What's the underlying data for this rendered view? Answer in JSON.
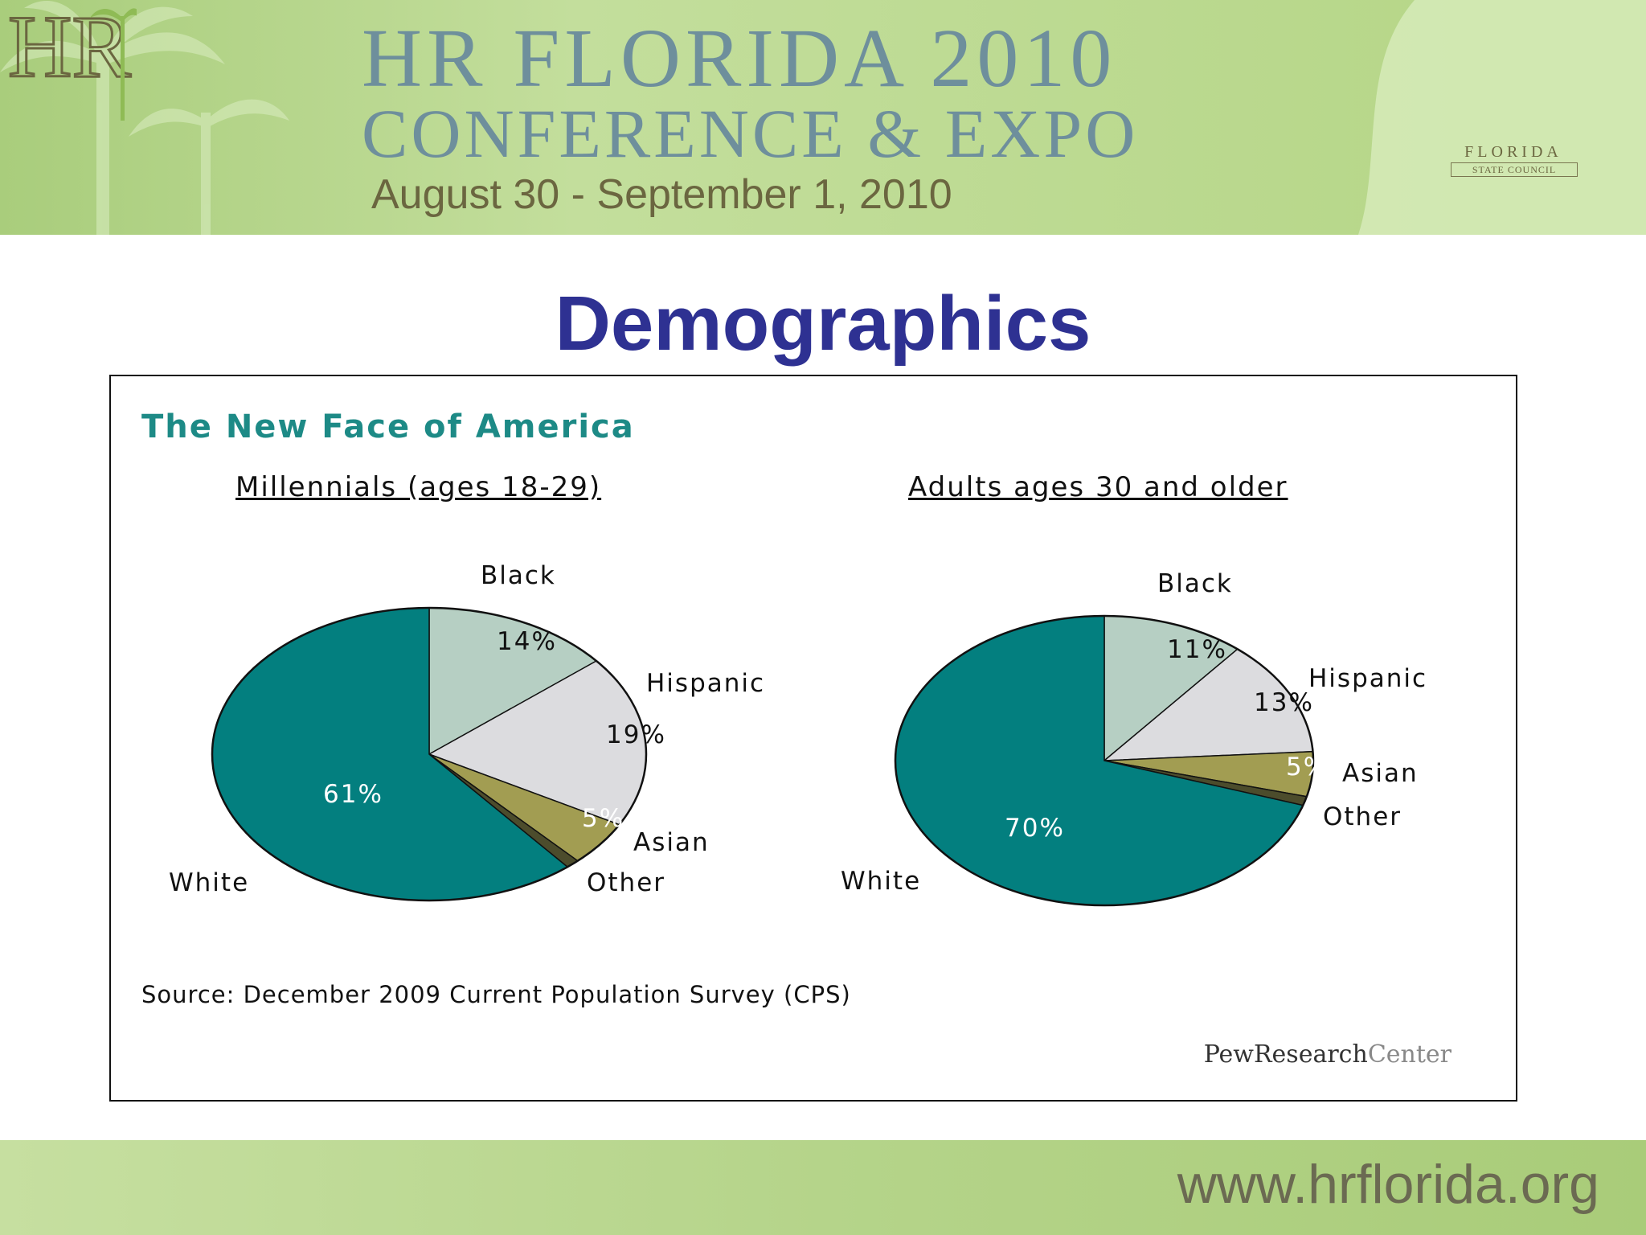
{
  "header": {
    "line1": "HR FLORIDA 2010",
    "line2": "CONFERENCE & EXPO",
    "dates": "August 30 - September 1, 2010",
    "logo": {
      "mark": "HR",
      "florida": "FLORIDA",
      "council": "STATE COUNCIL"
    }
  },
  "slide": {
    "title": "Demographics"
  },
  "figure": {
    "heading": "The New Face of America",
    "source": "Source: December 2009 Current Population Survey (CPS)",
    "publisher_bold": "PewResearch",
    "publisher_light": "Center"
  },
  "colors": {
    "white": "#037f7f",
    "black": "#b6cfc3",
    "hispanic": "#dcdcdf",
    "asian": "#a29d52",
    "other": "#4c4c2c",
    "header_green": "#b9d88e",
    "title_blue": "#2e3192",
    "heading_teal": "#1d8a86"
  },
  "chart_data": [
    {
      "type": "pie",
      "title": "Millennials (ages 18-29)",
      "labels": [
        "Black",
        "Hispanic",
        "Asian",
        "Other",
        "White"
      ],
      "values": [
        14,
        19,
        5,
        1,
        61
      ],
      "value_labels": [
        "14%",
        "19%",
        "5%",
        "",
        "61%"
      ]
    },
    {
      "type": "pie",
      "title": "Adults ages 30 and older",
      "labels": [
        "Black",
        "Hispanic",
        "Asian",
        "Other",
        "White"
      ],
      "values": [
        11,
        13,
        5,
        1,
        70
      ],
      "value_labels": [
        "11%",
        "13%",
        "5%",
        "",
        "70%"
      ]
    }
  ],
  "footer": {
    "url": "www.hrflorida.org"
  }
}
